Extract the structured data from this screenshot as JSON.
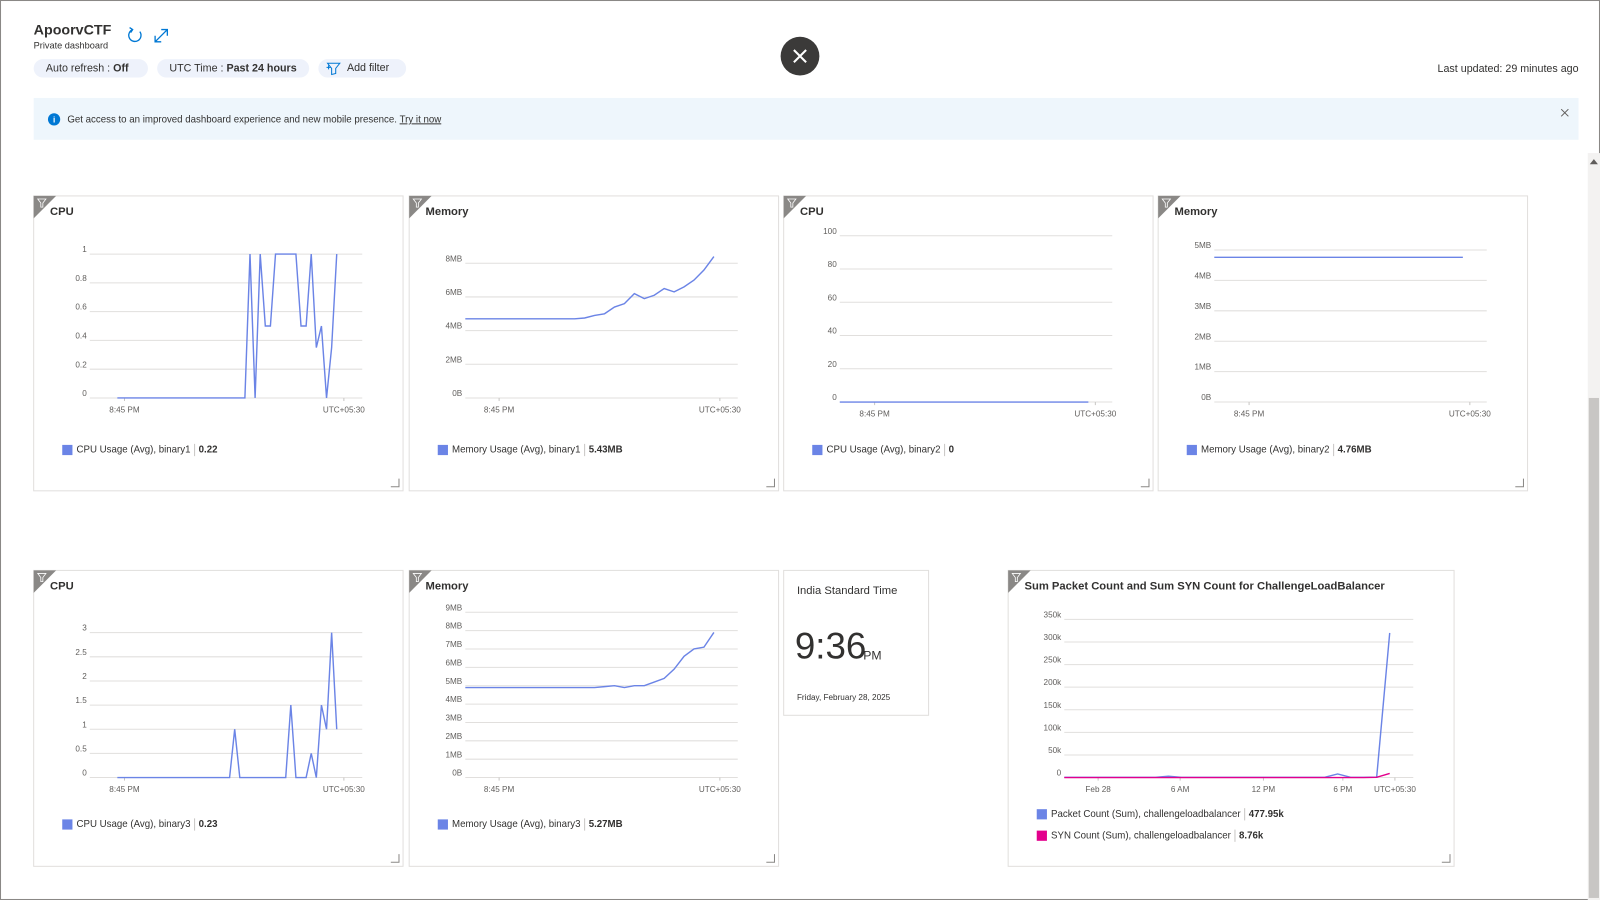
{
  "header": {
    "title": "ApoorvCTF",
    "subtitle": "Private dashboard",
    "auto_refresh_label": "Auto refresh : ",
    "auto_refresh_value": "Off",
    "time_label": "UTC Time : ",
    "time_value": "Past 24 hours",
    "add_filter": "Add filter",
    "last_updated": "Last updated: 29 minutes ago"
  },
  "banner": {
    "text": "Get access to an improved dashboard experience and new mobile presence. ",
    "link": "Try it now"
  },
  "clock": {
    "title": "India Standard Time",
    "time": "9:36",
    "ampm": "PM",
    "date": "Friday, February 28, 2025"
  },
  "charts": [
    {
      "type": "line",
      "title": "CPU",
      "xlim": [
        -5.4,
        48
      ],
      "xticks": [
        {
          "value": 1.4,
          "label": "8:45 PM"
        },
        {
          "value": 44.4,
          "label": "UTC+05:30"
        }
      ],
      "ylim": [
        0,
        1
      ],
      "yticks": [
        0,
        0.2,
        0.4,
        0.6,
        0.8,
        1
      ],
      "series": [
        {
          "name": "CPU Usage (Avg), binary1",
          "color": "#6b84e6",
          "summary": "0.22",
          "values": [
            0,
            0,
            0,
            0,
            0,
            0,
            0,
            0,
            0,
            0,
            0,
            0,
            0,
            0,
            0,
            0,
            0,
            0,
            0,
            0,
            0,
            0,
            0,
            0,
            0,
            0,
            1,
            0,
            1,
            0.5,
            0.5,
            1,
            1,
            1,
            1,
            1,
            0.5,
            0.5,
            1,
            0.35,
            0.5,
            0,
            0.35,
            1
          ]
        }
      ]
    },
    {
      "type": "line",
      "title": "Memory",
      "xlim": [
        0,
        27.4
      ],
      "xticks": [
        {
          "value": 3.4,
          "label": "8:45 PM"
        },
        {
          "value": 25.6,
          "label": "UTC+05:30"
        }
      ],
      "ylim": [
        0,
        8
      ],
      "yticks": [
        {
          "value": 0,
          "label": "0B"
        },
        {
          "value": 2,
          "label": "2MB"
        },
        {
          "value": 4,
          "label": "4MB"
        },
        {
          "value": 6,
          "label": "6MB"
        },
        {
          "value": 8,
          "label": "8MB"
        }
      ],
      "series": [
        {
          "name": "Memory Usage (Avg), binary1",
          "color": "#6b84e6",
          "summary": "5.43MB",
          "values": [
            4.7,
            4.7,
            4.7,
            4.7,
            4.7,
            4.7,
            4.7,
            4.7,
            4.7,
            4.7,
            4.7,
            4.7,
            4.75,
            4.9,
            5.0,
            5.4,
            5.6,
            6.2,
            5.9,
            6.1,
            6.5,
            6.3,
            6.6,
            7.0,
            7.6,
            8.4
          ]
        }
      ]
    },
    {
      "type": "line",
      "title": "CPU",
      "xlim": [
        0,
        27.4
      ],
      "xticks": [
        {
          "value": 3.5,
          "label": "8:45 PM"
        },
        {
          "value": 25.7,
          "label": "UTC+05:30"
        }
      ],
      "ylim": [
        0,
        100
      ],
      "yticks": [
        0,
        20,
        40,
        60,
        80,
        100
      ],
      "series": [
        {
          "name": "CPU Usage (Avg), binary2",
          "color": "#6b84e6",
          "summary": "0",
          "values": [
            0,
            0,
            0,
            0,
            0,
            0,
            0,
            0,
            0,
            0,
            0,
            0,
            0,
            0,
            0,
            0,
            0,
            0,
            0,
            0,
            0,
            0,
            0,
            0,
            0,
            0
          ]
        }
      ]
    },
    {
      "type": "line",
      "title": "Memory",
      "xlim": [
        0,
        27.4
      ],
      "xticks": [
        {
          "value": 3.5,
          "label": "8:45 PM"
        },
        {
          "value": 25.7,
          "label": "UTC+05:30"
        }
      ],
      "ylim": [
        0,
        5
      ],
      "yticks": [
        {
          "value": 0,
          "label": "0B"
        },
        {
          "value": 1,
          "label": "1MB"
        },
        {
          "value": 2,
          "label": "2MB"
        },
        {
          "value": 3,
          "label": "3MB"
        },
        {
          "value": 4,
          "label": "4MB"
        },
        {
          "value": 5,
          "label": "5MB"
        }
      ],
      "series": [
        {
          "name": "Memory Usage (Avg), binary2",
          "color": "#6b84e6",
          "summary": "4.76MB",
          "values": [
            4.76,
            4.76,
            4.76,
            4.76,
            4.76,
            4.76,
            4.76,
            4.76,
            4.76,
            4.76,
            4.76,
            4.76,
            4.76,
            4.76,
            4.76,
            4.76,
            4.76,
            4.76,
            4.76,
            4.76,
            4.76,
            4.76,
            4.76,
            4.76,
            4.76,
            4.76
          ]
        }
      ]
    },
    {
      "type": "line",
      "title": "CPU",
      "xlim": [
        -5.4,
        48
      ],
      "xticks": [
        {
          "value": 1.4,
          "label": "8:45 PM"
        },
        {
          "value": 44.4,
          "label": "UTC+05:30"
        }
      ],
      "ylim": [
        0,
        3
      ],
      "yticks": [
        0,
        0.5,
        1,
        1.5,
        2,
        2.5,
        3
      ],
      "series": [
        {
          "name": "CPU Usage (Avg), binary3",
          "color": "#6b84e6",
          "summary": "0.23",
          "values": [
            0,
            0,
            0,
            0,
            0,
            0,
            0,
            0,
            0,
            0,
            0,
            0,
            0,
            0,
            0,
            0,
            0,
            0,
            0,
            0,
            0,
            0,
            0,
            1,
            0,
            0,
            0,
            0,
            0,
            0,
            0,
            0,
            0,
            0,
            1.5,
            0,
            0,
            0,
            0.5,
            0,
            1.5,
            1,
            3,
            1
          ]
        }
      ]
    },
    {
      "type": "line",
      "title": "Memory",
      "xlim": [
        0,
        27.4
      ],
      "xticks": [
        {
          "value": 3.4,
          "label": "8:45 PM"
        },
        {
          "value": 25.6,
          "label": "UTC+05:30"
        }
      ],
      "ylim": [
        0,
        9
      ],
      "yticks": [
        {
          "value": 0,
          "label": "0B"
        },
        {
          "value": 1,
          "label": "1MB"
        },
        {
          "value": 2,
          "label": "2MB"
        },
        {
          "value": 3,
          "label": "3MB"
        },
        {
          "value": 4,
          "label": "4MB"
        },
        {
          "value": 5,
          "label": "5MB"
        },
        {
          "value": 6,
          "label": "6MB"
        },
        {
          "value": 7,
          "label": "7MB"
        },
        {
          "value": 8,
          "label": "8MB"
        },
        {
          "value": 9,
          "label": "9MB"
        }
      ],
      "series": [
        {
          "name": "Memory Usage (Avg), binary3",
          "color": "#6b84e6",
          "summary": "5.27MB",
          "values": [
            4.9,
            4.9,
            4.9,
            4.9,
            4.9,
            4.9,
            4.9,
            4.9,
            4.9,
            4.9,
            4.9,
            4.9,
            4.9,
            4.9,
            4.95,
            5.0,
            4.9,
            5.0,
            5.0,
            5.2,
            5.4,
            5.9,
            6.6,
            7.0,
            7.1,
            7.9
          ]
        }
      ]
    },
    {
      "type": "line",
      "title": "Sum Packet Count and Sum SYN Count for ChallengeLoadBalancer",
      "xlim": [
        0,
        26.81
      ],
      "xticks": [
        {
          "value": 2.6,
          "label": "Feb 28"
        },
        {
          "value": 8.9,
          "label": "6 AM"
        },
        {
          "value": 15.3,
          "label": "12 PM"
        },
        {
          "value": 21.4,
          "label": "6 PM"
        },
        {
          "value": 25.4,
          "label": "UTC+05:30"
        }
      ],
      "ylim": [
        0,
        350000
      ],
      "yticks": [
        0,
        {
          "value": 50000,
          "label": "50k"
        },
        {
          "value": 100000,
          "label": "100k"
        },
        {
          "value": 150000,
          "label": "150k"
        },
        {
          "value": 200000,
          "label": "200k"
        },
        {
          "value": 250000,
          "label": "250k"
        },
        {
          "value": 300000,
          "label": "300k"
        },
        {
          "value": 350000,
          "label": "350k"
        }
      ],
      "series": [
        {
          "name": "Packet Count (Sum), challengeloadbalancer",
          "color": "#6b84e6",
          "summary": "477.95k",
          "values": [
            500,
            500,
            500,
            500,
            500,
            500,
            500,
            500,
            3000,
            500,
            500,
            500,
            500,
            500,
            500,
            500,
            500,
            500,
            500,
            500,
            500,
            8000,
            500,
            500,
            1000,
            320000
          ]
        },
        {
          "name": "SYN Count (Sum), challengeloadbalancer",
          "color": "#e3008c",
          "summary": "8.76k",
          "values": [
            0,
            0,
            0,
            0,
            0,
            0,
            0,
            0,
            0,
            0,
            0,
            0,
            0,
            0,
            0,
            0,
            0,
            0,
            0,
            0,
            0,
            0,
            0,
            0,
            500,
            9000
          ]
        }
      ]
    }
  ]
}
